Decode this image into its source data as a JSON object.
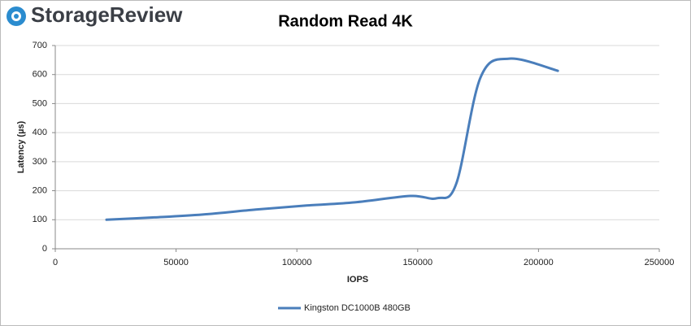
{
  "brand": "StorageReview",
  "chart_data": {
    "type": "line",
    "title": "Random Read 4K",
    "x_label": "IOPS",
    "y_label": "Latency (µs)",
    "series": [
      {
        "name": "Kingston DC1000B 480GB",
        "color": "#4a7ebb",
        "x": [
          21200,
          41000,
          61000,
          83000,
          104000,
          124000,
          147000,
          158000,
          166000,
          176000,
          188000,
          208000
        ],
        "values": [
          100,
          108,
          118,
          135,
          149,
          160,
          182,
          174,
          225,
          590,
          655,
          613
        ]
      }
    ],
    "xlim": [
      0,
      250000
    ],
    "xticks": [
      0,
      50000,
      100000,
      150000,
      200000,
      250000
    ],
    "ylim": [
      0,
      700
    ],
    "yticks": [
      0,
      100,
      200,
      300,
      400,
      500,
      600,
      700
    ],
    "grid": true,
    "legend": "bottom"
  }
}
